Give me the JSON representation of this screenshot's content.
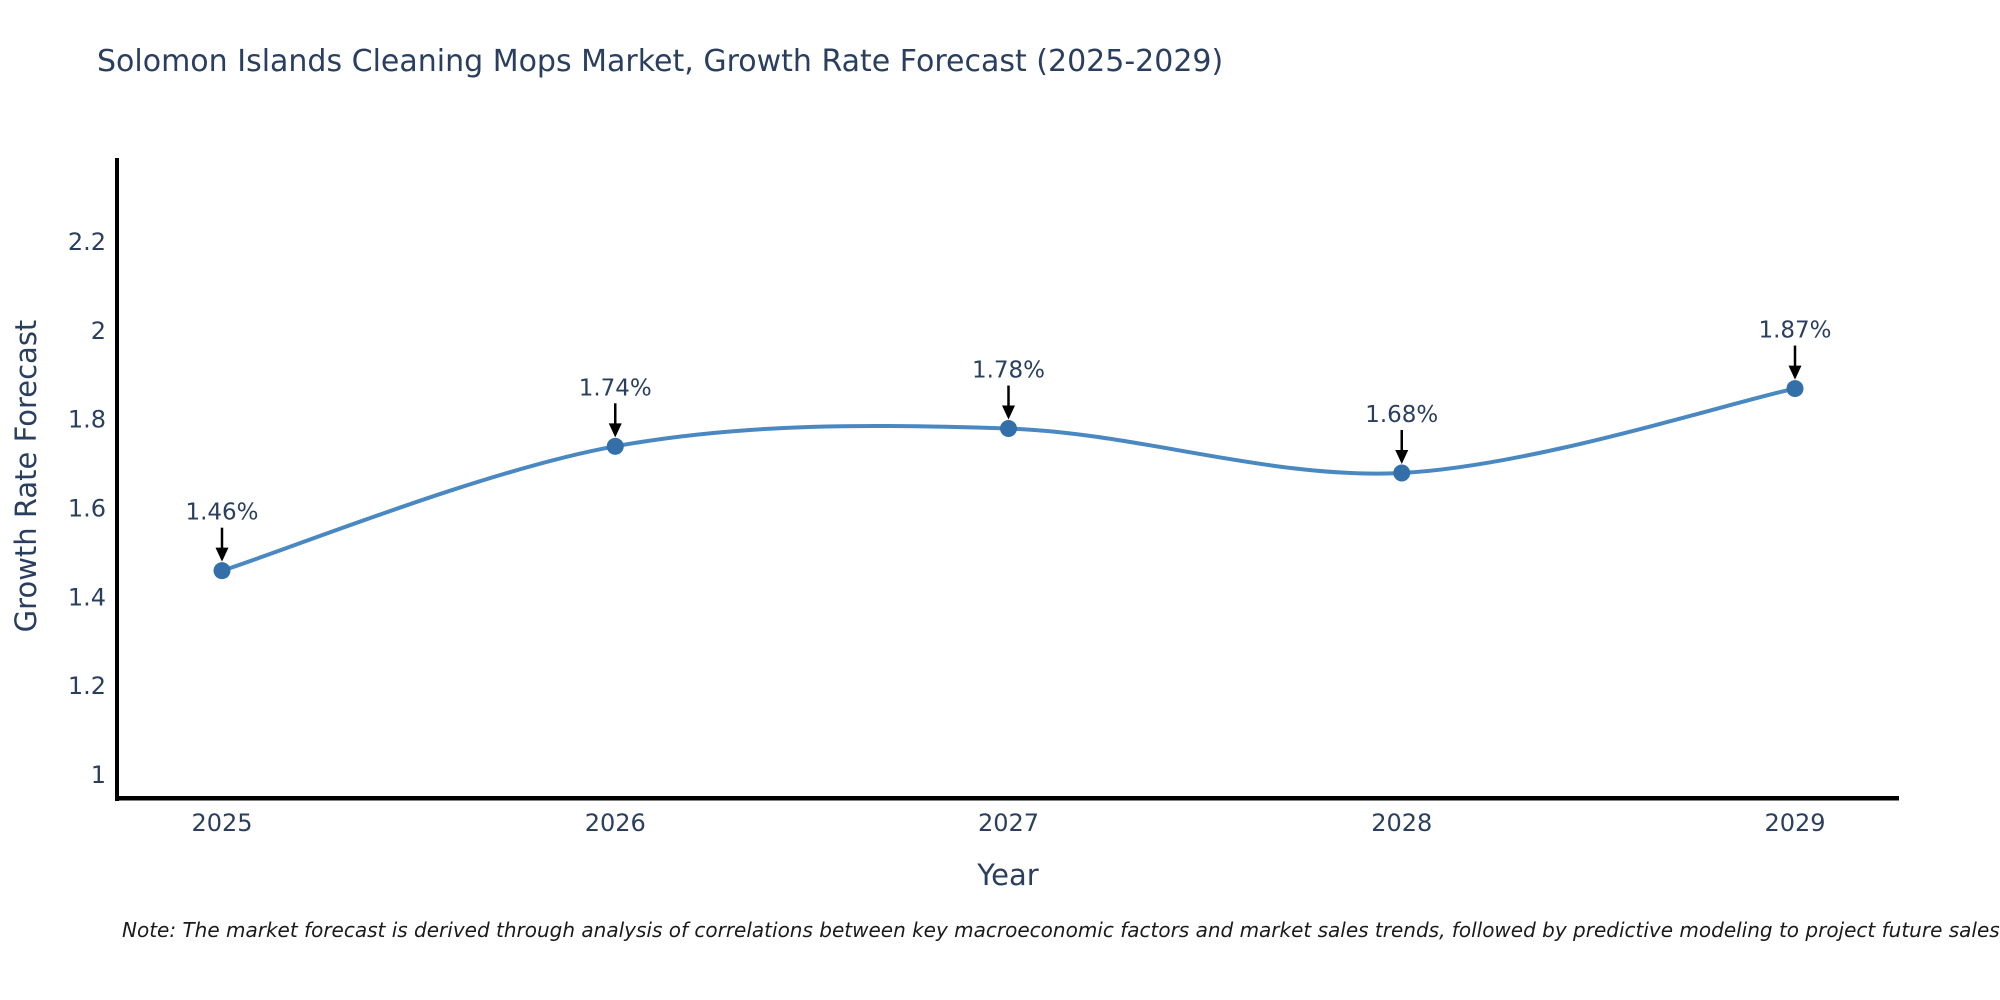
{
  "title": "Solomon Islands Cleaning Mops Market, Growth Rate Forecast (2025-2029)",
  "note": "Note: The market forecast is derived through analysis of correlations between key macroeconomic factors and market sales trends, followed by predictive modeling to project future sales",
  "chart_data": {
    "type": "line",
    "title": "Solomon Islands Cleaning Mops Market, Growth Rate Forecast (2025-2029)",
    "xlabel": "Year",
    "ylabel": "Growth Rate Forecast",
    "x": [
      2025,
      2026,
      2027,
      2028,
      2029
    ],
    "values": [
      1.46,
      1.74,
      1.78,
      1.68,
      1.87
    ],
    "point_labels": [
      "1.46%",
      "1.74%",
      "1.78%",
      "1.68%",
      "1.87%"
    ],
    "x_tick_labels": [
      "2025",
      "2026",
      "2027",
      "2028",
      "2029"
    ],
    "y_ticks": [
      1,
      1.2,
      1.4,
      1.6,
      1.8,
      2,
      2.2
    ],
    "y_tick_labels": [
      "1",
      "1.2",
      "1.4",
      "1.6",
      "1.8",
      "2",
      "2.2"
    ],
    "ylim": [
      0.94,
      2.39
    ],
    "grid": false,
    "legend": "none",
    "smooth_spline": true,
    "colors": {
      "line": "#4a88c2",
      "marker": "#336fa8",
      "axis": "#000000",
      "text": "#2a3f5f",
      "annotation_text": "#2a3f5f",
      "annotation_arrow": "#000000",
      "background": "#ffffff"
    }
  }
}
